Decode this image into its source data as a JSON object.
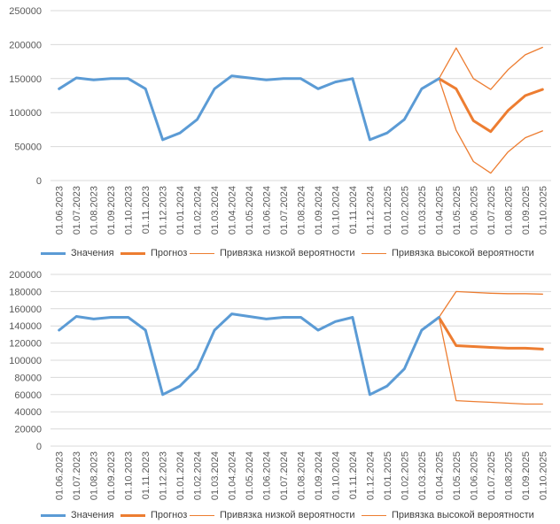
{
  "colors": {
    "values": "#5b9bd5",
    "forecast": "#ed7d31",
    "bounds": "#ed7d31",
    "grid": "#d9d9d9",
    "axis_text": "#595959"
  },
  "chart_data": [
    {
      "type": "line",
      "x": [
        "01.06.2023",
        "01.07.2023",
        "01.08.2023",
        "01.09.2023",
        "01.10.2023",
        "01.11.2023",
        "01.12.2023",
        "01.01.2024",
        "01.02.2024",
        "01.03.2024",
        "01.04.2024",
        "01.05.2024",
        "01.06.2024",
        "01.07.2024",
        "01.08.2024",
        "01.09.2024",
        "01.10.2024",
        "01.11.2024",
        "01.12.2024",
        "01.01.2025",
        "01.02.2025",
        "01.03.2025",
        "01.04.2025",
        "01.05.2025",
        "01.06.2025",
        "01.07.2025",
        "01.08.2025",
        "01.09.2025",
        "01.10.2025"
      ],
      "ylim": [
        0,
        250000
      ],
      "yticks": [
        "0",
        "50000",
        "100000",
        "150000",
        "200000",
        "250000"
      ],
      "grid": true,
      "legend_position": "bottom",
      "series": [
        {
          "name": "Значения",
          "values": [
            135000,
            151000,
            148000,
            150000,
            150000,
            135000,
            60000,
            70000,
            90000,
            135000,
            154000,
            151000,
            148000,
            150000,
            150000,
            135000,
            145000,
            150000,
            60000,
            70000,
            90000,
            135000,
            150000,
            null,
            null,
            null,
            null,
            null,
            null
          ]
        },
        {
          "name": "Прогноз",
          "values": [
            null,
            null,
            null,
            null,
            null,
            null,
            null,
            null,
            null,
            null,
            null,
            null,
            null,
            null,
            null,
            null,
            null,
            null,
            null,
            null,
            null,
            null,
            150000,
            135000,
            88000,
            72000,
            103000,
            125000,
            134000
          ]
        },
        {
          "name": "Привязка низкой вероятности",
          "values": [
            null,
            null,
            null,
            null,
            null,
            null,
            null,
            null,
            null,
            null,
            null,
            null,
            null,
            null,
            null,
            null,
            null,
            null,
            null,
            null,
            null,
            null,
            150000,
            74000,
            28000,
            11000,
            42000,
            63000,
            73000
          ]
        },
        {
          "name": "Привязка высокой вероятности",
          "values": [
            null,
            null,
            null,
            null,
            null,
            null,
            null,
            null,
            null,
            null,
            null,
            null,
            null,
            null,
            null,
            null,
            null,
            null,
            null,
            null,
            null,
            null,
            150000,
            195000,
            150000,
            134000,
            163000,
            185000,
            196000
          ]
        }
      ]
    },
    {
      "type": "line",
      "x": [
        "01.06.2023",
        "01.07.2023",
        "01.08.2023",
        "01.09.2023",
        "01.10.2023",
        "01.11.2023",
        "01.12.2023",
        "01.01.2024",
        "01.02.2024",
        "01.03.2024",
        "01.04.2024",
        "01.05.2024",
        "01.06.2024",
        "01.07.2024",
        "01.08.2024",
        "01.09.2024",
        "01.10.2024",
        "01.11.2024",
        "01.12.2024",
        "01.01.2025",
        "01.02.2025",
        "01.03.2025",
        "01.04.2025",
        "01.05.2025",
        "01.06.2025",
        "01.07.2025",
        "01.08.2025",
        "01.09.2025",
        "01.10.2025"
      ],
      "ylim": [
        0,
        200000
      ],
      "yticks": [
        "0",
        "20000",
        "40000",
        "60000",
        "80000",
        "100000",
        "120000",
        "140000",
        "160000",
        "180000",
        "200000"
      ],
      "grid": true,
      "legend_position": "bottom",
      "series": [
        {
          "name": "Значения",
          "values": [
            135000,
            151000,
            148000,
            150000,
            150000,
            135000,
            60000,
            70000,
            90000,
            135000,
            154000,
            151000,
            148000,
            150000,
            150000,
            135000,
            145000,
            150000,
            60000,
            70000,
            90000,
            135000,
            150000,
            null,
            null,
            null,
            null,
            null,
            null
          ]
        },
        {
          "name": "Прогноз",
          "values": [
            null,
            null,
            null,
            null,
            null,
            null,
            null,
            null,
            null,
            null,
            null,
            null,
            null,
            null,
            null,
            null,
            null,
            null,
            null,
            null,
            null,
            null,
            150000,
            117000,
            116000,
            115000,
            114000,
            114000,
            113000
          ]
        },
        {
          "name": "Привязка низкой вероятности",
          "values": [
            null,
            null,
            null,
            null,
            null,
            null,
            null,
            null,
            null,
            null,
            null,
            null,
            null,
            null,
            null,
            null,
            null,
            null,
            null,
            null,
            null,
            null,
            150000,
            53000,
            52000,
            51000,
            50000,
            49000,
            49000
          ]
        },
        {
          "name": "Привязка высокой вероятности",
          "values": [
            null,
            null,
            null,
            null,
            null,
            null,
            null,
            null,
            null,
            null,
            null,
            null,
            null,
            null,
            null,
            null,
            null,
            null,
            null,
            null,
            null,
            null,
            150000,
            180000,
            179000,
            178000,
            177500,
            177500,
            177000
          ]
        }
      ]
    }
  ]
}
